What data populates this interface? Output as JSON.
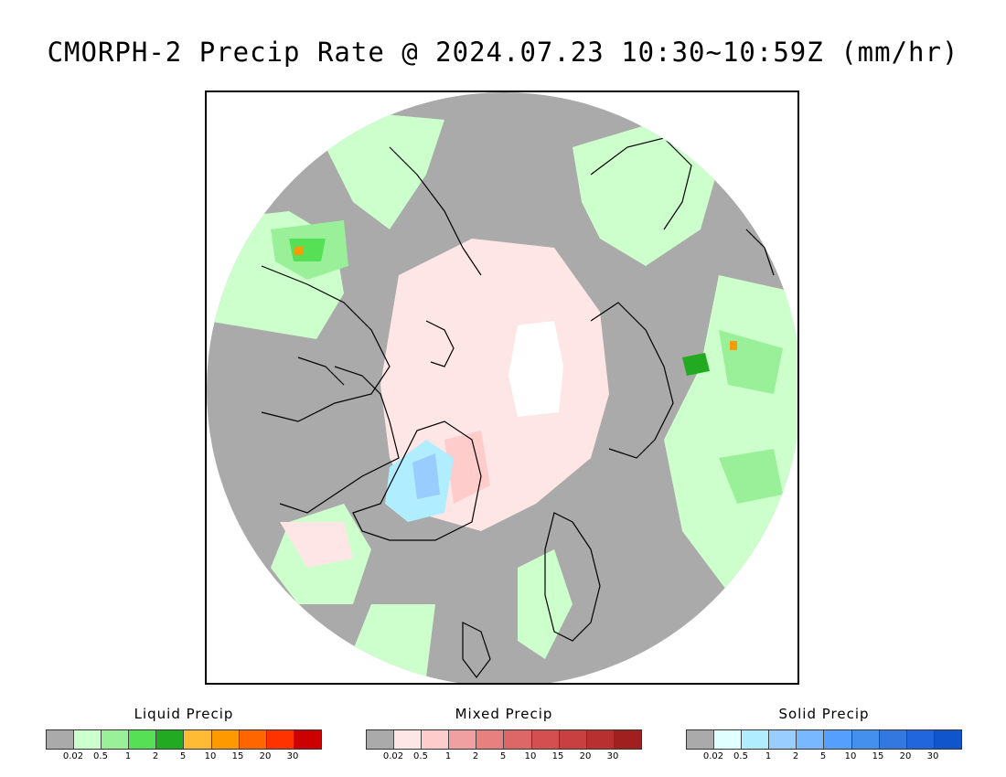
{
  "title": "CMORPH-2 Precip Rate @ 2024.07.23 10:30~10:59Z (mm/hr)",
  "legends": [
    {
      "name": "Liquid Precip",
      "colors": [
        "#aaaaaa",
        "#ccffcc",
        "#99f099",
        "#55e055",
        "#22aa22",
        "#ffbb33",
        "#ff9900",
        "#ff6600",
        "#ff3300",
        "#cc0000"
      ],
      "ticks": [
        "0.02",
        "0.5",
        "1",
        "2",
        "5",
        "10",
        "15",
        "20",
        "30"
      ]
    },
    {
      "name": "Mixed Precip",
      "colors": [
        "#aaaaaa",
        "#ffe6e6",
        "#ffcccc",
        "#f0a0a0",
        "#e88080",
        "#dd6666",
        "#d45050",
        "#c84040",
        "#b83030",
        "#a02020"
      ],
      "ticks": [
        "0.02",
        "0.5",
        "1",
        "2",
        "5",
        "10",
        "15",
        "20",
        "30"
      ]
    },
    {
      "name": "Solid Precip",
      "colors": [
        "#aaaaaa",
        "#e0ffff",
        "#b0eeff",
        "#99ccff",
        "#77b8ff",
        "#55a0ff",
        "#4490ee",
        "#3378e0",
        "#2266dd",
        "#1155cc"
      ],
      "ticks": [
        "0.02",
        "0.5",
        "1",
        "2",
        "5",
        "10",
        "15",
        "20",
        "30"
      ]
    }
  ]
}
